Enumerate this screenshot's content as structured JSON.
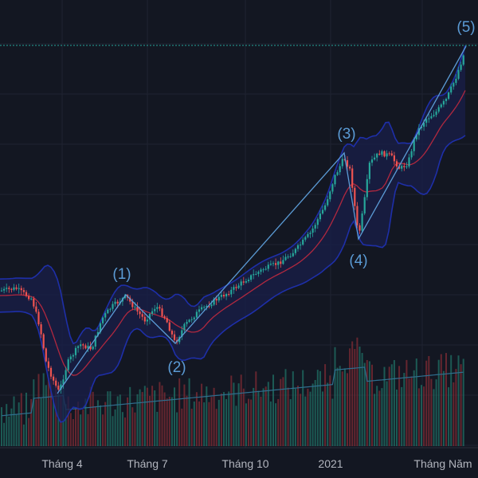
{
  "chart_data": {
    "type": "candlestick",
    "x_axis_labels": [
      "Tháng 4",
      "Tháng 7",
      "Tháng 10",
      "2021",
      "Tháng Năm"
    ],
    "wave_labels": [
      "(1)",
      "(2)",
      "(3)",
      "(4)",
      "(5)"
    ],
    "overlays": [
      "Bollinger Bands",
      "Moving average",
      "Volume",
      "Volume moving average",
      "Elliott wave lines"
    ],
    "grid": true,
    "colors": {
      "background": "#131722",
      "up_candle": "#26a69a",
      "down_candle": "#ef5350",
      "band": "#1e2fa8",
      "band_fill": "#1a1f4a",
      "moving_average": "#b0283f",
      "wave_line": "#5b9bd5",
      "volume_ma": "#2f6f8f",
      "price_line": "#26a69a",
      "label_text": "#b2b5be"
    }
  }
}
